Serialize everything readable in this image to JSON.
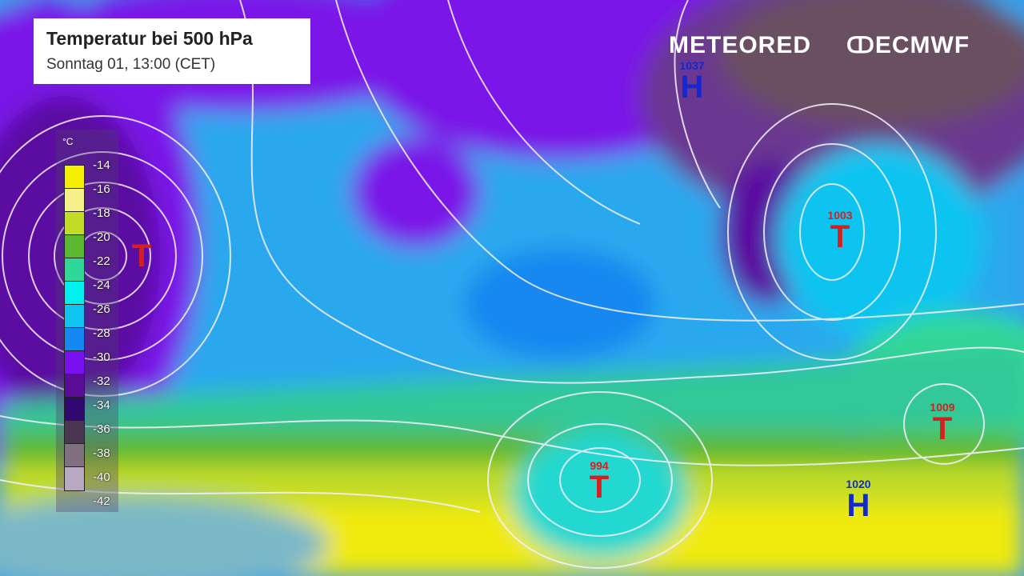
{
  "header": {
    "title": "Temperatur bei 500 hPa",
    "subtitle": "Sonntag 01, 13:00 (CET)"
  },
  "brands": {
    "meteored": "METEORED",
    "ecmwf": "ECMWF"
  },
  "legend": {
    "unit": "°C",
    "labels": [
      "-14",
      "-16",
      "-18",
      "-20",
      "-22",
      "-24",
      "-26",
      "-28",
      "-30",
      "-32",
      "-34",
      "-36",
      "-38",
      "-40",
      "-42"
    ],
    "colors": [
      "#f5f000",
      "#f6f08a",
      "#c2dc28",
      "#5cb830",
      "#30d898",
      "#00f0f0",
      "#10c4f0",
      "#1488f0",
      "#7a10f0",
      "#5a0c96",
      "#300870",
      "#4a3650",
      "#807080",
      "#b8a8c0"
    ]
  },
  "pressure_systems": [
    {
      "type": "H",
      "value": "1037",
      "color": "#1428d0"
    },
    {
      "type": "T",
      "value": "1003",
      "color": "#d62020"
    },
    {
      "type": "T",
      "value": "1009",
      "color": "#d62020"
    },
    {
      "type": "T",
      "value": "994",
      "color": "#d62020"
    },
    {
      "type": "H",
      "value": "1020",
      "color": "#1428d0"
    },
    {
      "type": "T",
      "value": "",
      "color": "#d62020"
    }
  ]
}
